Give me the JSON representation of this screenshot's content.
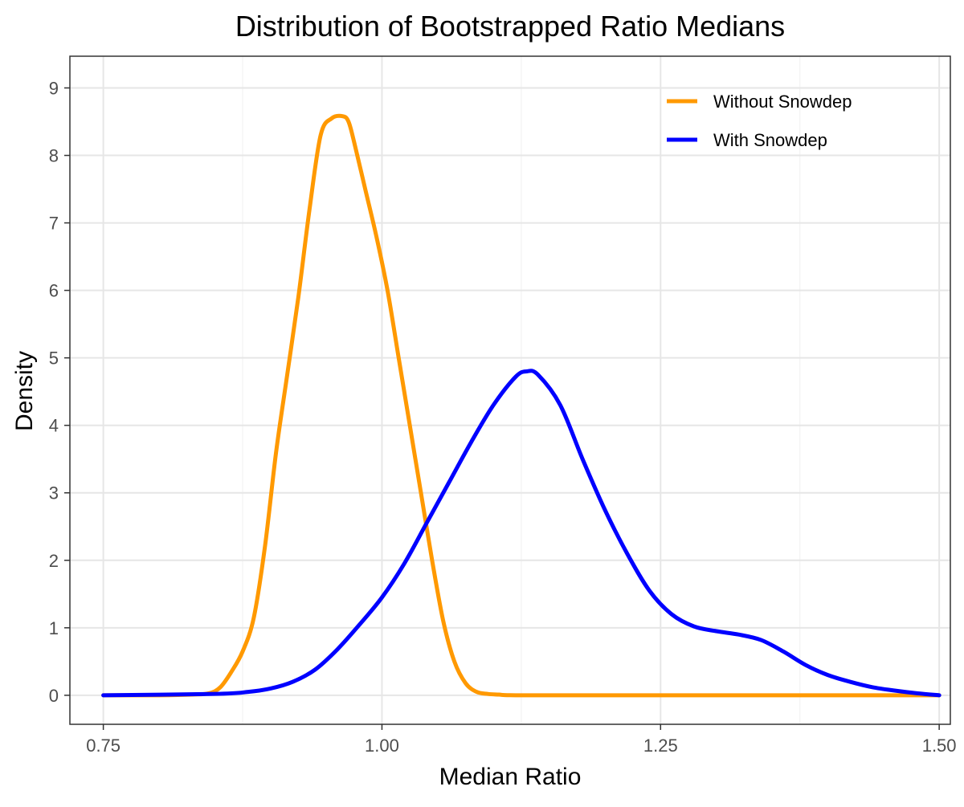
{
  "chart_data": {
    "type": "line",
    "title": "Distribution of Bootstrapped Ratio Medians",
    "xlabel": "Median Ratio",
    "ylabel": "Density",
    "xlim": [
      0.72,
      1.51
    ],
    "ylim": [
      -0.43,
      9.47
    ],
    "x_ticks": [
      0.75,
      1.0,
      1.25,
      1.5
    ],
    "x_tick_labels": [
      "0.75",
      "1.00",
      "1.25",
      "1.50"
    ],
    "y_ticks": [
      0,
      1,
      2,
      3,
      4,
      5,
      6,
      7,
      8,
      9
    ],
    "y_tick_labels": [
      "0",
      "1",
      "2",
      "3",
      "4",
      "5",
      "6",
      "7",
      "8",
      "9"
    ],
    "grid": true,
    "legend_position": "top-right",
    "series": [
      {
        "name": "Without Snowdep",
        "color": "#FF9900",
        "x": [
          0.75,
          0.8,
          0.83,
          0.845,
          0.855,
          0.865,
          0.875,
          0.885,
          0.895,
          0.905,
          0.915,
          0.925,
          0.935,
          0.945,
          0.955,
          0.965,
          0.97,
          0.975,
          0.985,
          0.995,
          1.005,
          1.015,
          1.025,
          1.035,
          1.045,
          1.055,
          1.065,
          1.075,
          1.085,
          1.095,
          1.105,
          1.12,
          1.2,
          1.3,
          1.4,
          1.5
        ],
        "y": [
          0.0,
          0.0,
          0.01,
          0.03,
          0.12,
          0.35,
          0.65,
          1.15,
          2.2,
          3.6,
          4.75,
          5.9,
          7.2,
          8.3,
          8.55,
          8.58,
          8.5,
          8.2,
          7.5,
          6.8,
          6.0,
          5.0,
          4.0,
          3.0,
          2.0,
          1.1,
          0.5,
          0.18,
          0.05,
          0.02,
          0.01,
          0.0,
          0.0,
          0.0,
          0.0,
          0.0
        ]
      },
      {
        "name": "With Snowdep",
        "color": "#0000FF",
        "x": [
          0.75,
          0.85,
          0.88,
          0.9,
          0.92,
          0.94,
          0.96,
          0.98,
          1.0,
          1.02,
          1.04,
          1.06,
          1.08,
          1.1,
          1.12,
          1.13,
          1.14,
          1.16,
          1.18,
          1.2,
          1.22,
          1.24,
          1.26,
          1.28,
          1.3,
          1.32,
          1.34,
          1.36,
          1.38,
          1.4,
          1.42,
          1.44,
          1.46,
          1.48,
          1.5
        ],
        "y": [
          0.0,
          0.02,
          0.05,
          0.1,
          0.2,
          0.38,
          0.68,
          1.05,
          1.45,
          1.95,
          2.55,
          3.15,
          3.75,
          4.3,
          4.72,
          4.8,
          4.75,
          4.3,
          3.5,
          2.75,
          2.1,
          1.55,
          1.2,
          1.02,
          0.95,
          0.9,
          0.82,
          0.65,
          0.45,
          0.3,
          0.2,
          0.12,
          0.07,
          0.03,
          0.0
        ]
      }
    ]
  }
}
